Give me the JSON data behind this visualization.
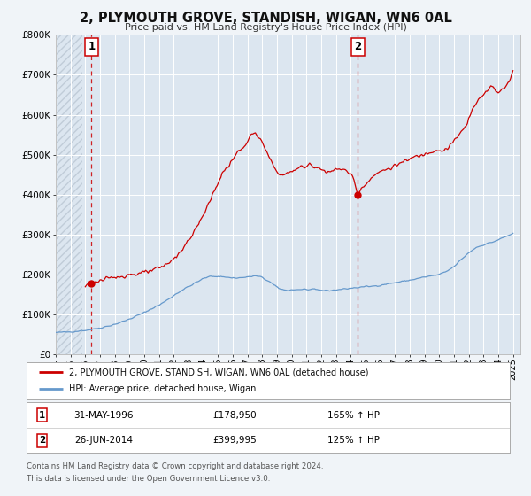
{
  "title": "2, PLYMOUTH GROVE, STANDISH, WIGAN, WN6 0AL",
  "subtitle": "Price paid vs. HM Land Registry's House Price Index (HPI)",
  "hpi_label": "HPI: Average price, detached house, Wigan",
  "property_label": "2, PLYMOUTH GROVE, STANDISH, WIGAN, WN6 0AL (detached house)",
  "footer1": "Contains HM Land Registry data © Crown copyright and database right 2024.",
  "footer2": "This data is licensed under the Open Government Licence v3.0.",
  "sale1_date": "31-MAY-1996",
  "sale1_price": "£178,950",
  "sale1_hpi": "165% ↑ HPI",
  "sale2_date": "26-JUN-2014",
  "sale2_price": "£399,995",
  "sale2_hpi": "125% ↑ HPI",
  "sale1_x": 1996.42,
  "sale1_y": 178950,
  "sale2_x": 2014.48,
  "sale2_y": 399995,
  "vline1_x": 1996.42,
  "vline2_x": 2014.48,
  "xlim": [
    1994.0,
    2025.5
  ],
  "ylim": [
    0,
    800000
  ],
  "yticks": [
    0,
    100000,
    200000,
    300000,
    400000,
    500000,
    600000,
    700000,
    800000
  ],
  "ytick_labels": [
    "£0",
    "£100K",
    "£200K",
    "£300K",
    "£400K",
    "£500K",
    "£600K",
    "£700K",
    "£800K"
  ],
  "property_color": "#cc0000",
  "hpi_color": "#6699cc",
  "background_color": "#f0f4f8",
  "plot_bg_color": "#dce6f0",
  "grid_color": "#ffffff",
  "vline_color": "#cc0000",
  "hatch_color": "#c0ccd8"
}
